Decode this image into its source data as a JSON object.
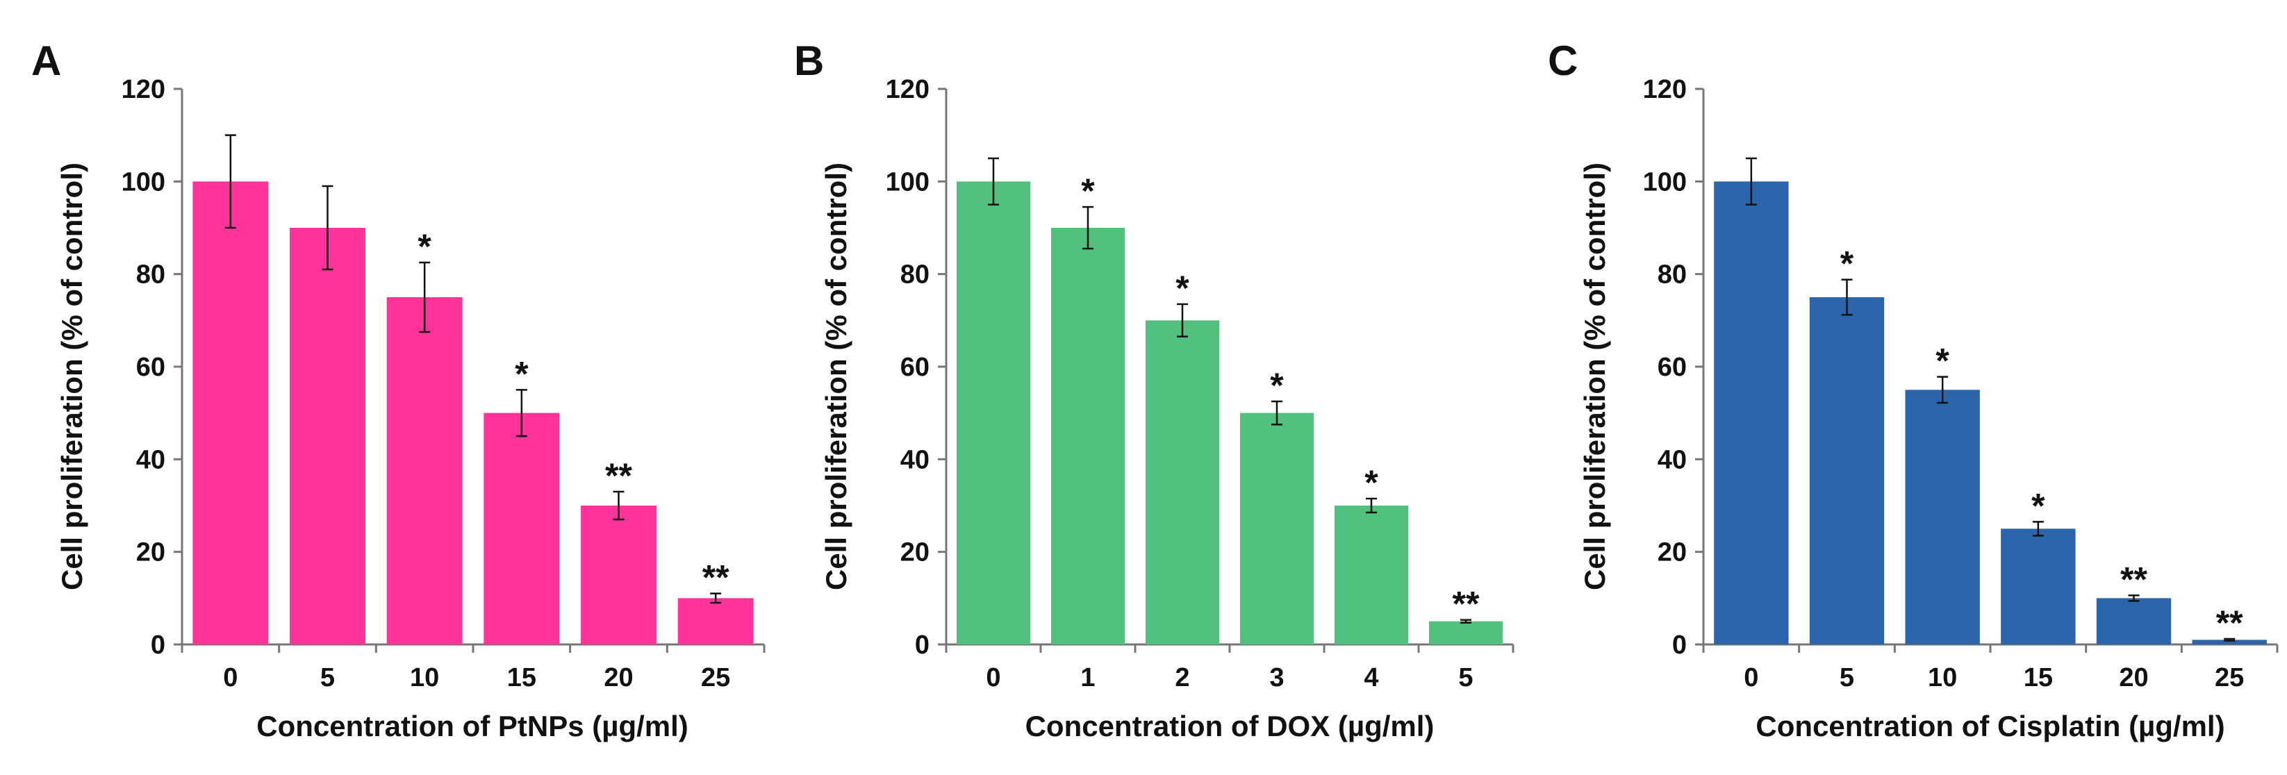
{
  "chart_data": [
    {
      "type": "bar",
      "panel_label": "A",
      "color": "#ff3399",
      "categories": [
        "0",
        "5",
        "10",
        "15",
        "20",
        "25"
      ],
      "values": [
        100,
        90,
        75,
        50,
        30,
        10
      ],
      "errors": [
        10,
        9,
        7.5,
        5,
        3,
        1
      ],
      "significance": [
        "",
        "",
        "*",
        "*",
        "**",
        "**"
      ],
      "xlabel": "Concentration of PtNPs (µg/ml)",
      "ylabel": "Cell proliferation (% of control)",
      "ylim": [
        0,
        120
      ],
      "yticks": [
        "0",
        "20",
        "40",
        "60",
        "80",
        "100",
        "120"
      ]
    },
    {
      "type": "bar",
      "panel_label": "B",
      "color": "#52c07f",
      "categories": [
        "0",
        "1",
        "2",
        "3",
        "4",
        "5"
      ],
      "values": [
        100,
        90,
        70,
        50,
        30,
        5
      ],
      "errors": [
        5,
        4.5,
        3.5,
        2.5,
        1.5,
        0.3
      ],
      "significance": [
        "",
        "*",
        "*",
        "*",
        "*",
        "**"
      ],
      "xlabel": "Concentration of DOX (µg/ml)",
      "ylabel": "Cell proliferation (% of control)",
      "ylim": [
        0,
        120
      ],
      "yticks": [
        "0",
        "20",
        "40",
        "60",
        "80",
        "100",
        "120"
      ]
    },
    {
      "type": "bar",
      "panel_label": "C",
      "color": "#2b66ad",
      "categories": [
        "0",
        "5",
        "10",
        "15",
        "20",
        "25"
      ],
      "values": [
        100,
        75,
        55,
        25,
        10,
        1
      ],
      "errors": [
        5,
        3.8,
        2.8,
        1.5,
        0.6,
        0.2
      ],
      "significance": [
        "",
        "*",
        "*",
        "*",
        "**",
        "**"
      ],
      "xlabel": "Concentration of Cisplatin (µg/ml)",
      "ylabel": "Cell proliferation (% of control)",
      "ylim": [
        0,
        120
      ],
      "yticks": [
        "0",
        "20",
        "40",
        "60",
        "80",
        "100",
        "120"
      ]
    }
  ]
}
